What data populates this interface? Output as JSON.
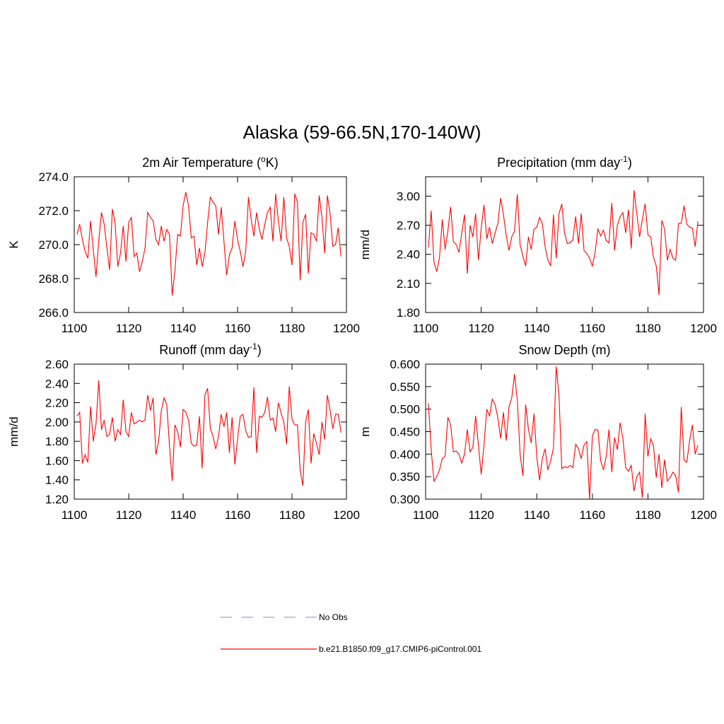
{
  "title": "Alaska (59-66.5N,170-140W)",
  "legend": [
    {
      "name": "No Obs",
      "color": "#9999ff",
      "dashed": true
    },
    {
      "name": "b.e21.B1850.f09_g17.CMIP6-piControl.001",
      "color": "#ff0000",
      "dashed": false
    }
  ],
  "chart_data": [
    {
      "type": "line",
      "title": [
        "2m Air Temperature (",
        "o",
        "K)"
      ],
      "y_label": "K",
      "xlim": [
        1100,
        1200
      ],
      "xticks": [
        1100,
        1120,
        1140,
        1160,
        1180,
        1200
      ],
      "ylim": [
        266,
        274
      ],
      "yticks": [
        {
          "value": 266,
          "label": "266.0"
        },
        {
          "value": 268,
          "label": "268.0"
        },
        {
          "value": 270,
          "label": "270.0"
        },
        {
          "value": 272,
          "label": "272.0"
        },
        {
          "value": 274,
          "label": "274.0"
        }
      ],
      "x": [
        1101,
        1102,
        1103,
        1104,
        1105,
        1106,
        1107,
        1108,
        1109,
        1110,
        1111,
        1112,
        1113,
        1114,
        1115,
        1116,
        1117,
        1118,
        1119,
        1120,
        1121,
        1122,
        1123,
        1124,
        1125,
        1126,
        1127,
        1128,
        1129,
        1130,
        1131,
        1132,
        1133,
        1134,
        1135,
        1136,
        1137,
        1138,
        1139,
        1140,
        1141,
        1142,
        1143,
        1144,
        1145,
        1146,
        1147,
        1148,
        1149,
        1150,
        1151,
        1152,
        1153,
        1154,
        1155,
        1156,
        1157,
        1158,
        1159,
        1160,
        1161,
        1162,
        1163,
        1164,
        1165,
        1166,
        1167,
        1168,
        1169,
        1170,
        1171,
        1172,
        1173,
        1174,
        1175,
        1176,
        1177,
        1178,
        1179,
        1180,
        1181,
        1182,
        1183,
        1184,
        1185,
        1186,
        1187,
        1188,
        1189,
        1190,
        1191,
        1192,
        1193,
        1194,
        1195,
        1196,
        1197,
        1198
      ],
      "series": [
        {
          "color": "#ff0000",
          "values": [
            270.6,
            271.2,
            270.3,
            269.6,
            269.2,
            271.4,
            269.7,
            268.1,
            270.2,
            271.9,
            271.2,
            269.8,
            268.5,
            272.1,
            271.3,
            268.7,
            269.5,
            271.1,
            269.0,
            271.3,
            271.6,
            269.3,
            269.5,
            268.4,
            269.0,
            269.8,
            271.9,
            271.6,
            271.4,
            270.3,
            270.0,
            271.1,
            270.2,
            270.9,
            270.6,
            267.0,
            268.5,
            270.6,
            270.5,
            272.3,
            273.1,
            272.3,
            270.4,
            270.5,
            268.8,
            269.8,
            268.7,
            269.5,
            271.3,
            272.8,
            272.5,
            272.3,
            270.6,
            272.2,
            270.2,
            268.2,
            269.4,
            269.8,
            271.4,
            270.3,
            269.6,
            268.7,
            269.6,
            272.8,
            271.5,
            270.5,
            271.9,
            270.9,
            270.3,
            271.2,
            271.9,
            272.2,
            270.2,
            273.0,
            271.4,
            270.2,
            272.8,
            270.4,
            269.9,
            268.8,
            273.0,
            272.5,
            267.9,
            271.3,
            271.8,
            268.3,
            270.7,
            270.6,
            270.2,
            272.9,
            271.6,
            269.5,
            272.9,
            271.8,
            269.9,
            270.0,
            271.0,
            269.3
          ]
        }
      ]
    },
    {
      "type": "line",
      "title": [
        "Precipitation (mm day",
        "-1",
        ")"
      ],
      "y_label": "mm/d",
      "xlim": [
        1100,
        1200
      ],
      "xticks": [
        1100,
        1120,
        1140,
        1160,
        1180,
        1200
      ],
      "ylim": [
        1.8,
        3.2
      ],
      "yticks": [
        {
          "value": 1.8,
          "label": "1.80"
        },
        {
          "value": 2.1,
          "label": "2.10"
        },
        {
          "value": 2.4,
          "label": "2.40"
        },
        {
          "value": 2.7,
          "label": "2.70"
        },
        {
          "value": 3.0,
          "label": "3.00"
        }
      ],
      "x": [
        1101,
        1102,
        1103,
        1104,
        1105,
        1106,
        1107,
        1108,
        1109,
        1110,
        1111,
        1112,
        1113,
        1114,
        1115,
        1116,
        1117,
        1118,
        1119,
        1120,
        1121,
        1122,
        1123,
        1124,
        1125,
        1126,
        1127,
        1128,
        1129,
        1130,
        1131,
        1132,
        1133,
        1134,
        1135,
        1136,
        1137,
        1138,
        1139,
        1140,
        1141,
        1142,
        1143,
        1144,
        1145,
        1146,
        1147,
        1148,
        1149,
        1150,
        1151,
        1152,
        1153,
        1154,
        1155,
        1156,
        1157,
        1158,
        1159,
        1160,
        1161,
        1162,
        1163,
        1164,
        1165,
        1166,
        1167,
        1168,
        1169,
        1170,
        1171,
        1172,
        1173,
        1174,
        1175,
        1176,
        1177,
        1178,
        1179,
        1180,
        1181,
        1182,
        1183,
        1184,
        1185,
        1186,
        1187,
        1188,
        1189,
        1190,
        1191,
        1192,
        1193,
        1194,
        1195,
        1196,
        1197,
        1198
      ],
      "series": [
        {
          "color": "#ff0000",
          "values": [
            2.47,
            2.85,
            2.32,
            2.22,
            2.37,
            2.76,
            2.45,
            2.64,
            2.89,
            2.53,
            2.5,
            2.42,
            2.62,
            2.81,
            2.2,
            2.7,
            2.58,
            2.82,
            2.34,
            2.67,
            2.91,
            2.56,
            2.68,
            2.51,
            2.62,
            2.72,
            2.98,
            2.81,
            2.6,
            2.44,
            2.58,
            2.64,
            3.02,
            2.5,
            2.38,
            2.28,
            2.58,
            2.45,
            2.66,
            2.68,
            2.78,
            2.72,
            2.48,
            2.34,
            2.28,
            2.81,
            2.36,
            2.82,
            2.92,
            2.62,
            2.51,
            2.52,
            2.55,
            2.79,
            2.51,
            2.82,
            2.44,
            2.41,
            2.36,
            2.28,
            2.42,
            2.66,
            2.59,
            2.65,
            2.54,
            2.52,
            2.93,
            2.44,
            2.7,
            2.79,
            2.83,
            2.62,
            2.86,
            2.46,
            3.06,
            2.82,
            2.58,
            2.76,
            2.92,
            2.6,
            2.58,
            2.37,
            2.28,
            1.98,
            2.75,
            2.66,
            2.34,
            2.45,
            2.36,
            2.34,
            2.72,
            2.72,
            2.9,
            2.71,
            2.68,
            2.67,
            2.48,
            2.74
          ]
        }
      ]
    },
    {
      "type": "line",
      "title": [
        "Runoff (mm day",
        "-1",
        ")"
      ],
      "y_label": "mm/d",
      "xlim": [
        1100,
        1200
      ],
      "xticks": [
        1100,
        1120,
        1140,
        1160,
        1180,
        1200
      ],
      "ylim": [
        1.2,
        2.6
      ],
      "yticks": [
        {
          "value": 1.2,
          "label": "1.20"
        },
        {
          "value": 1.4,
          "label": "1.40"
        },
        {
          "value": 1.6,
          "label": "1.60"
        },
        {
          "value": 1.8,
          "label": "1.80"
        },
        {
          "value": 2.0,
          "label": "2.00"
        },
        {
          "value": 2.2,
          "label": "2.20"
        },
        {
          "value": 2.4,
          "label": "2.40"
        },
        {
          "value": 2.6,
          "label": "2.60"
        }
      ],
      "x": [
        1101,
        1102,
        1103,
        1104,
        1105,
        1106,
        1107,
        1108,
        1109,
        1110,
        1111,
        1112,
        1113,
        1114,
        1115,
        1116,
        1117,
        1118,
        1119,
        1120,
        1121,
        1122,
        1123,
        1124,
        1125,
        1126,
        1127,
        1128,
        1129,
        1130,
        1131,
        1132,
        1133,
        1134,
        1135,
        1136,
        1137,
        1138,
        1139,
        1140,
        1141,
        1142,
        1143,
        1144,
        1145,
        1146,
        1147,
        1148,
        1149,
        1150,
        1151,
        1152,
        1153,
        1154,
        1155,
        1156,
        1157,
        1158,
        1159,
        1160,
        1161,
        1162,
        1163,
        1164,
        1165,
        1166,
        1167,
        1168,
        1169,
        1170,
        1171,
        1172,
        1173,
        1174,
        1175,
        1176,
        1177,
        1178,
        1179,
        1180,
        1181,
        1182,
        1183,
        1184,
        1185,
        1186,
        1187,
        1188,
        1189,
        1190,
        1191,
        1192,
        1193,
        1194,
        1195,
        1196,
        1197,
        1198
      ],
      "series": [
        {
          "color": "#ff0000",
          "values": [
            2.06,
            2.1,
            1.57,
            1.66,
            1.58,
            2.16,
            1.8,
            1.98,
            2.43,
            1.92,
            2.02,
            1.85,
            1.87,
            2.05,
            1.8,
            1.92,
            1.87,
            2.23,
            1.9,
            1.85,
            2.1,
            1.98,
            2.0,
            2.02,
            2.0,
            2.02,
            2.28,
            2.12,
            2.25,
            1.66,
            1.8,
            2.12,
            2.25,
            2.18,
            1.75,
            1.39,
            1.97,
            1.9,
            1.74,
            2.13,
            2.1,
            2.02,
            1.78,
            1.75,
            1.76,
            2.06,
            1.52,
            2.28,
            2.35,
            1.93,
            1.85,
            1.72,
            1.85,
            2.08,
            1.95,
            2.1,
            1.68,
            2.05,
            1.56,
            1.82,
            2.06,
            2.08,
            1.91,
            1.84,
            1.85,
            2.36,
            1.68,
            2.06,
            2.05,
            2.1,
            2.26,
            2.02,
            2.04,
            1.9,
            2.2,
            2.09,
            2.0,
            1.77,
            2.37,
            2.03,
            1.97,
            1.97,
            1.5,
            1.34,
            2.0,
            2.13,
            1.57,
            1.88,
            1.78,
            1.66,
            2.0,
            1.82,
            2.28,
            2.12,
            1.93,
            2.08,
            2.08,
            1.89
          ]
        }
      ]
    },
    {
      "type": "line",
      "title": [
        "Snow Depth (m)"
      ],
      "y_label": "m",
      "xlim": [
        1100,
        1200
      ],
      "xticks": [
        1100,
        1120,
        1140,
        1160,
        1180,
        1200
      ],
      "ylim": [
        0.3,
        0.6
      ],
      "yticks": [
        {
          "value": 0.3,
          "label": "0.300"
        },
        {
          "value": 0.35,
          "label": "0.350"
        },
        {
          "value": 0.4,
          "label": "0.400"
        },
        {
          "value": 0.45,
          "label": "0.450"
        },
        {
          "value": 0.5,
          "label": "0.500"
        },
        {
          "value": 0.55,
          "label": "0.550"
        },
        {
          "value": 0.6,
          "label": "0.600"
        }
      ],
      "x": [
        1101,
        1102,
        1103,
        1104,
        1105,
        1106,
        1107,
        1108,
        1109,
        1110,
        1111,
        1112,
        1113,
        1114,
        1115,
        1116,
        1117,
        1118,
        1119,
        1120,
        1121,
        1122,
        1123,
        1124,
        1125,
        1126,
        1127,
        1128,
        1129,
        1130,
        1131,
        1132,
        1133,
        1134,
        1135,
        1136,
        1137,
        1138,
        1139,
        1140,
        1141,
        1142,
        1143,
        1144,
        1145,
        1146,
        1147,
        1148,
        1149,
        1150,
        1151,
        1152,
        1153,
        1154,
        1155,
        1156,
        1157,
        1158,
        1159,
        1160,
        1161,
        1162,
        1163,
        1164,
        1165,
        1166,
        1167,
        1168,
        1169,
        1170,
        1171,
        1172,
        1173,
        1174,
        1175,
        1176,
        1177,
        1178,
        1179,
        1180,
        1181,
        1182,
        1183,
        1184,
        1185,
        1186,
        1187,
        1188,
        1189,
        1190,
        1191,
        1192,
        1193,
        1194,
        1195,
        1196,
        1197,
        1198
      ],
      "series": [
        {
          "color": "#ff0000",
          "values": [
            0.513,
            0.41,
            0.34,
            0.35,
            0.365,
            0.39,
            0.395,
            0.482,
            0.465,
            0.405,
            0.407,
            0.4,
            0.38,
            0.4,
            0.455,
            0.405,
            0.415,
            0.485,
            0.42,
            0.355,
            0.42,
            0.5,
            0.485,
            0.522,
            0.51,
            0.48,
            0.435,
            0.493,
            0.43,
            0.505,
            0.525,
            0.578,
            0.52,
            0.4,
            0.352,
            0.51,
            0.455,
            0.425,
            0.49,
            0.395,
            0.342,
            0.39,
            0.412,
            0.365,
            0.385,
            0.413,
            0.595,
            0.53,
            0.368,
            0.372,
            0.37,
            0.375,
            0.37,
            0.422,
            0.412,
            0.39,
            0.42,
            0.428,
            0.3,
            0.44,
            0.455,
            0.453,
            0.385,
            0.365,
            0.395,
            0.455,
            0.36,
            0.437,
            0.41,
            0.47,
            0.435,
            0.37,
            0.362,
            0.375,
            0.318,
            0.35,
            0.36,
            0.303,
            0.49,
            0.395,
            0.435,
            0.418,
            0.348,
            0.4,
            0.325,
            0.388,
            0.34,
            0.348,
            0.36,
            0.352,
            0.315,
            0.505,
            0.387,
            0.382,
            0.43,
            0.465,
            0.4,
            0.42
          ]
        }
      ]
    }
  ]
}
